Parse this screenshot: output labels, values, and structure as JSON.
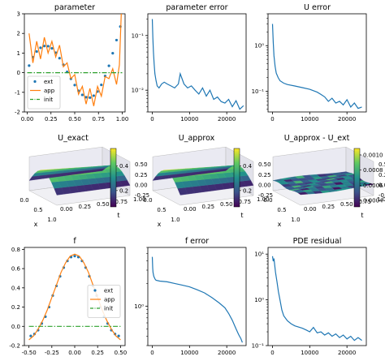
{
  "colors": {
    "ext": "#1f77b4",
    "app": "#ff7f0e",
    "init": "#2ca02c",
    "line": "#1f77b4"
  },
  "chart_data": [
    {
      "id": "parameter",
      "type": "line",
      "title": "parameter",
      "xlim": [
        -0.03,
        1.03
      ],
      "ylim": [
        -2,
        3
      ],
      "xticks": [
        "0.00",
        "0.25",
        "0.50",
        "0.75",
        "1.00"
      ],
      "yticks": [
        "-2",
        "-1",
        "0",
        "1",
        "2",
        "3"
      ],
      "legend": [
        "ext",
        "app",
        "init"
      ],
      "legend_loc": "lower left",
      "series": [
        {
          "name": "ext",
          "style": "dots",
          "x": [
            0.02,
            0.06,
            0.1,
            0.14,
            0.18,
            0.22,
            0.26,
            0.3,
            0.34,
            0.38,
            0.42,
            0.46,
            0.5,
            0.54,
            0.58,
            0.62,
            0.66,
            0.7,
            0.74,
            0.78,
            0.82,
            0.86,
            0.9,
            0.94,
            0.98
          ],
          "y": [
            0.36,
            0.79,
            1.08,
            1.27,
            1.36,
            1.35,
            1.24,
            1.02,
            0.74,
            0.41,
            0.04,
            -0.31,
            -0.63,
            -0.92,
            -1.13,
            -1.25,
            -1.27,
            -1.17,
            -0.96,
            -0.62,
            -0.17,
            0.35,
            0.99,
            1.66,
            2.35
          ]
        },
        {
          "name": "app",
          "style": "line",
          "x": [
            0.02,
            0.06,
            0.1,
            0.14,
            0.18,
            0.22,
            0.26,
            0.3,
            0.34,
            0.38,
            0.42,
            0.46,
            0.5,
            0.54,
            0.58,
            0.62,
            0.66,
            0.7,
            0.74,
            0.78,
            0.82,
            0.86,
            0.9,
            0.94,
            0.97,
            0.99
          ],
          "y": [
            2.0,
            0.5,
            1.6,
            0.7,
            1.8,
            1.0,
            1.6,
            0.8,
            1.4,
            0.3,
            0.5,
            -0.3,
            -0.1,
            -1.1,
            -0.7,
            -1.6,
            -0.8,
            -1.7,
            -0.7,
            -1.2,
            -0.2,
            -0.3,
            0.2,
            -0.6,
            0.4,
            3.0
          ]
        },
        {
          "name": "init",
          "style": "dashdot",
          "x": [
            0.0,
            1.0
          ],
          "y": [
            0,
            0
          ]
        }
      ]
    },
    {
      "id": "parameter-error",
      "type": "line",
      "title": "parameter error",
      "xlim": [
        -1200,
        25200
      ],
      "ylim": [
        0.004,
        0.25
      ],
      "yscale": "log",
      "xticks": [
        "0",
        "10000",
        "20000"
      ],
      "yticks": [
        "10⁻²",
        "10⁻¹"
      ],
      "series": [
        {
          "x": [
            0,
            150,
            300,
            500,
            700,
            1000,
            1300,
            1800,
            2500,
            3200,
            4000,
            5000,
            6000,
            7000,
            7500,
            8500,
            9500,
            10500,
            11500,
            12500,
            13500,
            14500,
            15500,
            16500,
            17500,
            18500,
            19500,
            20500,
            21500,
            22500,
            23500,
            24500
          ],
          "y": [
            0.2,
            0.09,
            0.05,
            0.03,
            0.02,
            0.015,
            0.012,
            0.011,
            0.013,
            0.014,
            0.013,
            0.012,
            0.011,
            0.013,
            0.02,
            0.013,
            0.011,
            0.012,
            0.01,
            0.0085,
            0.011,
            0.0078,
            0.01,
            0.0068,
            0.0075,
            0.0062,
            0.0058,
            0.0068,
            0.005,
            0.0064,
            0.0045,
            0.0052
          ]
        }
      ]
    },
    {
      "id": "u-error",
      "type": "line",
      "title": "U error",
      "xlim": [
        -1200,
        25200
      ],
      "ylim": [
        0.035,
        5
      ],
      "yscale": "log",
      "xticks": [
        "0",
        "10000",
        "20000"
      ],
      "yticks": [
        "10⁻¹",
        "10⁰"
      ],
      "series": [
        {
          "x": [
            0,
            200,
            400,
            700,
            1000,
            1500,
            2000,
            3000,
            4000,
            6000,
            8000,
            10000,
            12000,
            13000,
            14000,
            15000,
            16000,
            17000,
            18000,
            19000,
            20000,
            21000,
            22000,
            23000,
            24000
          ],
          "y": [
            3.0,
            1.2,
            0.6,
            0.35,
            0.25,
            0.2,
            0.17,
            0.15,
            0.14,
            0.13,
            0.12,
            0.11,
            0.095,
            0.085,
            0.075,
            0.06,
            0.07,
            0.055,
            0.06,
            0.05,
            0.065,
            0.045,
            0.055,
            0.042,
            0.045
          ]
        }
      ]
    },
    {
      "id": "u-exact",
      "type": "surface",
      "title": "U_exact",
      "colorbar_ticks": [
        "0.2",
        "0.4"
      ],
      "zticks": [
        "0.50",
        "0.25",
        "0.00",
        "-0.25"
      ],
      "x_axis_label": "x",
      "t_axis_label": "t",
      "x_ticks": [
        "0.0",
        "0.5",
        "1.0"
      ],
      "t_ticks": [
        "0.00",
        "0.25",
        "0.50",
        "0.75",
        "1.00"
      ]
    },
    {
      "id": "u-approx",
      "type": "surface",
      "title": "U_approx",
      "colorbar_ticks": [
        "0.2",
        "0.4"
      ],
      "zticks": [
        "0.50",
        "0.25",
        "0.00",
        "-0.25"
      ],
      "x_axis_label": "x",
      "t_axis_label": "t",
      "x_ticks": [
        "0.0",
        "0.5",
        "1.0"
      ],
      "t_ticks": [
        "0.00",
        "0.25",
        "0.50",
        "0.75",
        "1.00"
      ]
    },
    {
      "id": "u-diff",
      "type": "surface",
      "title": "U_approx - U_ext",
      "colorbar_ticks": [
        "0.0010",
        "0.0008",
        "0.0006",
        "0.0004"
      ],
      "zticks": [
        "0.50",
        "0.25",
        "0.00",
        "-0.25"
      ],
      "x_axis_label": "x",
      "t_axis_label": "t",
      "x_ticks": [
        "0.0",
        "0.5",
        "1.0"
      ],
      "t_ticks": [
        "0.00",
        "0.25",
        "0.50",
        "0.75",
        "1.00"
      ]
    },
    {
      "id": "f",
      "type": "line",
      "title": "f",
      "xlim": [
        -0.55,
        0.55
      ],
      "ylim": [
        -0.2,
        0.82
      ],
      "xticks": [
        "-0.50",
        "-0.25",
        "0.00",
        "0.25",
        "0.50"
      ],
      "yticks": [
        "-0.2",
        "0.0",
        "0.2",
        "0.4",
        "0.6",
        "0.8"
      ],
      "legend": [
        "ext",
        "app",
        "init"
      ],
      "legend_loc": "center right",
      "series": [
        {
          "name": "ext",
          "style": "dots",
          "x": [
            -0.48,
            -0.44,
            -0.4,
            -0.36,
            -0.32,
            -0.28,
            -0.24,
            -0.2,
            -0.16,
            -0.12,
            -0.08,
            -0.04,
            0.0,
            0.04,
            0.08,
            0.12,
            0.16,
            0.2,
            0.24,
            0.28,
            0.32,
            0.36,
            0.4,
            0.44,
            0.48
          ],
          "y": [
            -0.1,
            -0.08,
            -0.04,
            0.03,
            0.1,
            0.2,
            0.32,
            0.42,
            0.52,
            0.61,
            0.68,
            0.72,
            0.73,
            0.72,
            0.68,
            0.61,
            0.52,
            0.42,
            0.32,
            0.2,
            0.1,
            0.03,
            -0.04,
            -0.08,
            -0.1
          ]
        },
        {
          "name": "app",
          "style": "line",
          "x": [
            -0.5,
            -0.45,
            -0.4,
            -0.35,
            -0.3,
            -0.25,
            -0.2,
            -0.15,
            -0.1,
            -0.05,
            0.0,
            0.05,
            0.1,
            0.15,
            0.2,
            0.25,
            0.3,
            0.35,
            0.4,
            0.45,
            0.5
          ],
          "y": [
            -0.14,
            -0.1,
            -0.03,
            0.06,
            0.17,
            0.3,
            0.43,
            0.56,
            0.66,
            0.73,
            0.75,
            0.73,
            0.66,
            0.56,
            0.43,
            0.3,
            0.17,
            0.06,
            -0.03,
            -0.1,
            -0.14
          ]
        },
        {
          "name": "init",
          "style": "dashdot",
          "x": [
            -0.5,
            0.5
          ],
          "y": [
            0,
            0
          ]
        }
      ]
    },
    {
      "id": "f-error",
      "type": "line",
      "title": "f error",
      "xlim": [
        -1200,
        25200
      ],
      "ylim": [
        0.3,
        6
      ],
      "yscale": "log",
      "xticks": [
        "0",
        "10000",
        "20000"
      ],
      "yticks": [
        "10⁰"
      ],
      "series": [
        {
          "x": [
            0,
            100,
            200,
            400,
            700,
            1000,
            2000,
            4000,
            6000,
            8000,
            10000,
            12000,
            14000,
            16000,
            18000,
            19500,
            20500,
            21500,
            22500,
            23200,
            23800,
            24200
          ],
          "y": [
            4.5,
            3.2,
            2.8,
            2.5,
            2.3,
            2.2,
            2.15,
            2.1,
            2.0,
            1.9,
            1.8,
            1.65,
            1.5,
            1.3,
            1.1,
            0.95,
            0.8,
            0.65,
            0.5,
            0.42,
            0.37,
            0.33
          ]
        }
      ]
    },
    {
      "id": "pde-residual",
      "type": "line",
      "title": "PDE residual",
      "xlim": [
        -1200,
        25200
      ],
      "ylim": [
        0.1,
        14
      ],
      "yscale": "log",
      "xticks": [
        "0",
        "10000",
        "20000"
      ],
      "yticks": [
        "10⁻¹",
        "10⁰",
        "10¹"
      ],
      "series": [
        {
          "x": [
            0,
            200,
            400,
            800,
            1200,
            1600,
            2000,
            2500,
            3000,
            4000,
            5000,
            6000,
            8000,
            9000,
            10000,
            11000,
            12000,
            13000,
            14000,
            15000,
            16000,
            17000,
            18000,
            19000,
            20000,
            21000,
            22000,
            23000,
            24000
          ],
          "y": [
            9,
            7,
            8,
            4,
            2.5,
            1.5,
            1.0,
            0.6,
            0.45,
            0.35,
            0.3,
            0.27,
            0.24,
            0.22,
            0.2,
            0.25,
            0.19,
            0.2,
            0.17,
            0.19,
            0.16,
            0.18,
            0.15,
            0.17,
            0.14,
            0.16,
            0.13,
            0.15,
            0.13
          ]
        }
      ]
    }
  ]
}
